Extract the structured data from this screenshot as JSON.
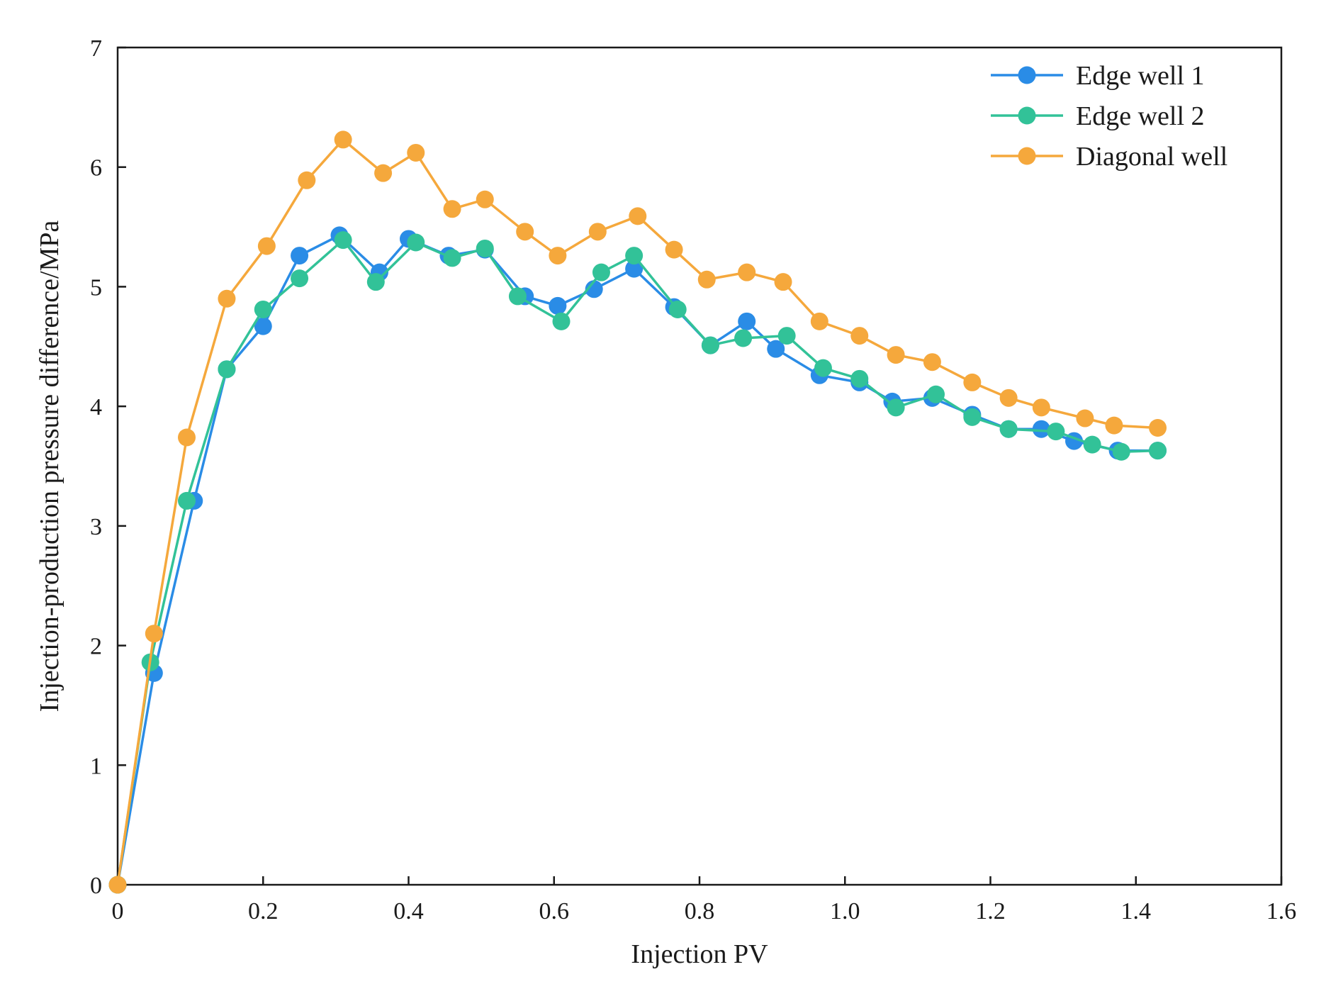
{
  "chart_data": {
    "type": "line",
    "title": "",
    "xlabel": "Injection PV",
    "ylabel": "Injection-production pressure difference/MPa",
    "xlim": [
      0,
      1.6
    ],
    "ylim": [
      0,
      7
    ],
    "xticks": [
      0,
      0.2,
      0.4,
      0.6,
      0.8,
      1.0,
      1.2,
      1.4,
      1.6
    ],
    "xtick_labels": [
      "0",
      "0.2",
      "0.4",
      "0.6",
      "0.8",
      "1.0",
      "1.2",
      "1.4",
      "1.6"
    ],
    "yticks": [
      0,
      1,
      2,
      3,
      4,
      5,
      6,
      7
    ],
    "ytick_labels": [
      "0",
      "1",
      "2",
      "3",
      "4",
      "5",
      "6",
      "7"
    ],
    "grid": false,
    "legend_position": "top-right",
    "series": [
      {
        "name": "Edge well 1",
        "color": "#2a8ce6",
        "x": [
          0,
          0.05,
          0.105,
          0.15,
          0.2,
          0.25,
          0.305,
          0.36,
          0.4,
          0.455,
          0.505,
          0.56,
          0.605,
          0.655,
          0.71,
          0.765,
          0.815,
          0.865,
          0.905,
          0.965,
          1.02,
          1.065,
          1.12,
          1.175,
          1.225,
          1.27,
          1.315,
          1.375,
          1.43
        ],
        "y": [
          0,
          1.77,
          3.21,
          4.31,
          4.67,
          5.26,
          5.43,
          5.12,
          5.4,
          5.26,
          5.31,
          4.92,
          4.84,
          4.98,
          5.15,
          4.83,
          4.51,
          4.71,
          4.48,
          4.26,
          4.2,
          4.04,
          4.07,
          3.93,
          3.81,
          3.81,
          3.71,
          3.63,
          3.63
        ]
      },
      {
        "name": "Edge well 2",
        "color": "#32c298",
        "x": [
          0,
          0.045,
          0.095,
          0.15,
          0.2,
          0.25,
          0.31,
          0.355,
          0.41,
          0.46,
          0.505,
          0.55,
          0.61,
          0.665,
          0.71,
          0.77,
          0.815,
          0.86,
          0.92,
          0.97,
          1.02,
          1.07,
          1.125,
          1.175,
          1.225,
          1.29,
          1.34,
          1.38,
          1.43
        ],
        "y": [
          0,
          1.86,
          3.21,
          4.31,
          4.81,
          5.07,
          5.39,
          5.04,
          5.37,
          5.24,
          5.32,
          4.92,
          4.71,
          5.12,
          5.26,
          4.81,
          4.51,
          4.57,
          4.59,
          4.32,
          4.23,
          3.99,
          4.1,
          3.91,
          3.81,
          3.79,
          3.68,
          3.62,
          3.63
        ]
      },
      {
        "name": "Diagonal well",
        "color": "#f5a83c",
        "x": [
          0,
          0.05,
          0.095,
          0.15,
          0.205,
          0.26,
          0.31,
          0.365,
          0.41,
          0.46,
          0.505,
          0.56,
          0.605,
          0.66,
          0.715,
          0.765,
          0.81,
          0.865,
          0.915,
          0.965,
          1.02,
          1.07,
          1.12,
          1.175,
          1.225,
          1.27,
          1.33,
          1.37,
          1.43
        ],
        "y": [
          0,
          2.1,
          3.74,
          4.9,
          5.34,
          5.89,
          6.23,
          5.95,
          6.12,
          5.65,
          5.73,
          5.46,
          5.26,
          5.46,
          5.59,
          5.31,
          5.06,
          5.12,
          5.04,
          4.71,
          4.59,
          4.43,
          4.37,
          4.2,
          4.07,
          3.99,
          3.9,
          3.84,
          3.82
        ]
      }
    ]
  }
}
